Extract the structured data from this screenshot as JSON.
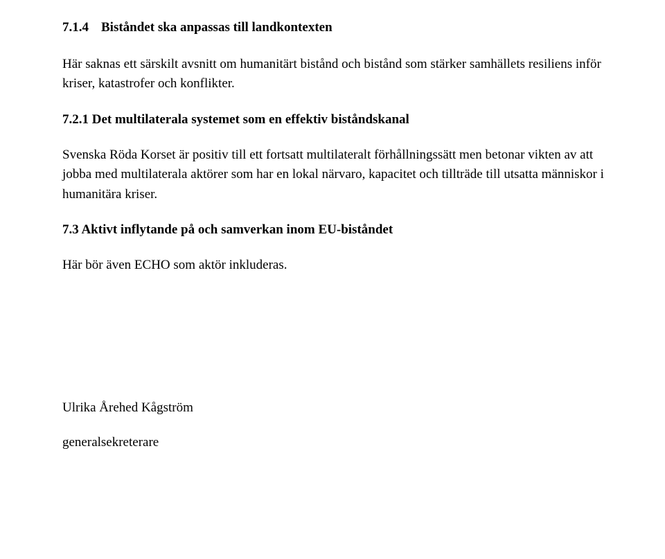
{
  "section_714": {
    "number": "7.1.4",
    "title": "Biståndet ska anpassas till landkontexten",
    "paragraph": "Här saknas ett särskilt avsnitt om humanitärt bistånd och bistånd som stärker samhällets resiliens inför kriser, katastrofer och konflikter."
  },
  "section_721": {
    "heading": "7.2.1 Det multilaterala systemet som en effektiv biståndskanal",
    "paragraph": "Svenska Röda Korset är positiv till ett fortsatt multilateralt förhållningssätt men betonar vikten av att jobba med multilaterala aktörer som har en lokal närvaro, kapacitet och tillträde till utsatta människor i humanitära kriser."
  },
  "section_73": {
    "heading": "7.3 Aktivt inflytande på och samverkan inom EU-biståndet",
    "paragraph": "Här bör även ECHO som aktör inkluderas."
  },
  "signature": {
    "name": "Ulrika Årehed Kågström",
    "title": "generalsekreterare"
  }
}
